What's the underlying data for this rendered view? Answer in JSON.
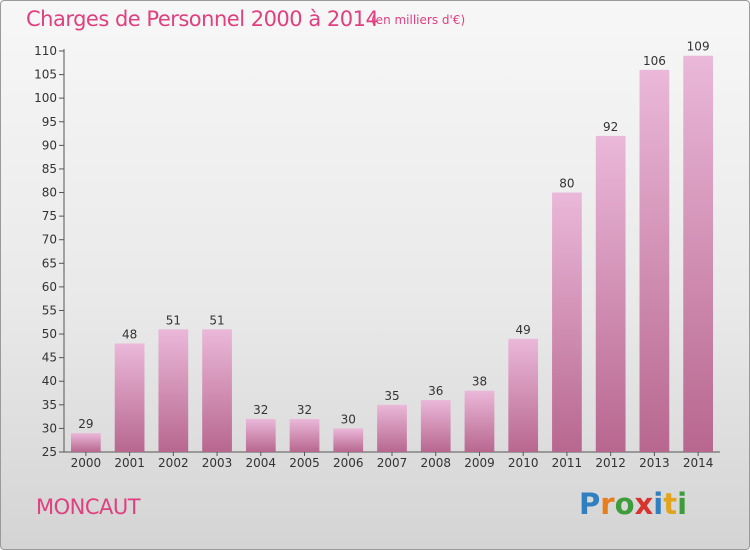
{
  "header": {
    "title": "Charges de Personnel 2000 à 2014",
    "unit": "(en milliers d'€)"
  },
  "footer": {
    "city": "MONCAUT",
    "logo": "Proxiti"
  },
  "colors": {
    "title": "#e0407f",
    "bar_light": "#eab8d9",
    "bar_dark": "#b8678f",
    "logo_letters": [
      "#2f7fc1",
      "#e87d1e",
      "#3e9c3c",
      "#d9332d",
      "#2f7fc1",
      "#e0a51c",
      "#3e9c3c"
    ]
  },
  "chart_data": {
    "type": "bar",
    "categories": [
      "2000",
      "2001",
      "2002",
      "2003",
      "2004",
      "2005",
      "2006",
      "2007",
      "2008",
      "2009",
      "2010",
      "2011",
      "2012",
      "2013",
      "2014"
    ],
    "values": [
      29,
      48,
      51,
      51,
      32,
      32,
      30,
      35,
      36,
      38,
      49,
      80,
      92,
      106,
      109
    ],
    "ylim": [
      25,
      110
    ],
    "yticks": [
      25,
      30,
      35,
      40,
      45,
      50,
      55,
      60,
      65,
      70,
      75,
      80,
      85,
      90,
      95,
      100,
      105,
      110
    ],
    "grid": false,
    "data_labels": true
  }
}
